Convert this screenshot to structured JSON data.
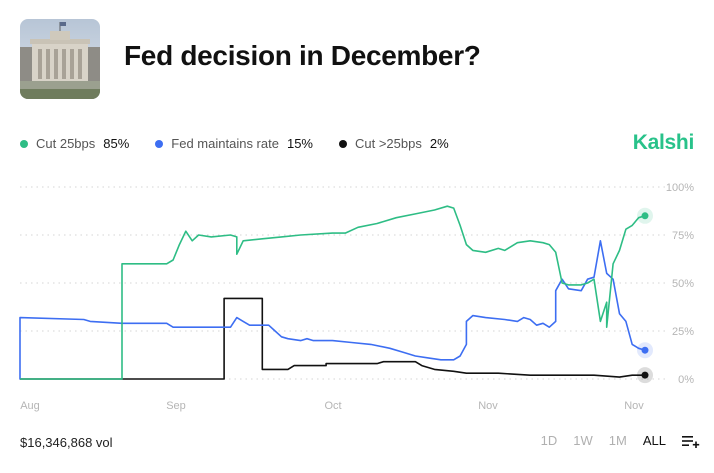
{
  "market": {
    "title": "Fed decision in December?",
    "thumbnail_icon": "federal-reserve-building-photo"
  },
  "brand": {
    "name": "Kalshi",
    "color": "#28c28a"
  },
  "legend": [
    {
      "name": "Cut 25bps",
      "value": "85%",
      "color": "#2ebd85"
    },
    {
      "name": "Fed maintains rate",
      "value": "15%",
      "color": "#3d6ef2"
    },
    {
      "name": "Cut >25bps",
      "value": "2%",
      "color": "#111111"
    }
  ],
  "footer": {
    "volume": "$16,346,868 vol",
    "ranges": [
      "1D",
      "1W",
      "1M",
      "ALL"
    ],
    "active_range": "ALL",
    "menu_icon": "playlist-add-icon"
  },
  "chart_data": {
    "type": "line",
    "x_type": "date",
    "x_ticks": [
      "Aug",
      "Sep",
      "Oct",
      "Nov",
      "Nov"
    ],
    "y_ticks": [
      "0%",
      "25%",
      "50%",
      "75%",
      "100%"
    ],
    "ylim": [
      0,
      100
    ],
    "y_axis_side": "right",
    "grid": "dotted-horizontal",
    "series": [
      {
        "name": "Cut 25bps",
        "color": "#2ebd85",
        "end_label": "85%",
        "points": [
          [
            0,
            0
          ],
          [
            16,
            0
          ],
          [
            16,
            60
          ],
          [
            23,
            60
          ],
          [
            24,
            62
          ],
          [
            25,
            70
          ],
          [
            26,
            77
          ],
          [
            27,
            72
          ],
          [
            28,
            75
          ],
          [
            30,
            74
          ],
          [
            33,
            75
          ],
          [
            34,
            74
          ],
          [
            34,
            65
          ],
          [
            35,
            72
          ],
          [
            38,
            73
          ],
          [
            41,
            74
          ],
          [
            44,
            75
          ],
          [
            49,
            76
          ],
          [
            51,
            76
          ],
          [
            53,
            79
          ],
          [
            56,
            81
          ],
          [
            59,
            84
          ],
          [
            62,
            86
          ],
          [
            65,
            88
          ],
          [
            67,
            90
          ],
          [
            68,
            89
          ],
          [
            69,
            80
          ],
          [
            70,
            70
          ],
          [
            71,
            67
          ],
          [
            73,
            66
          ],
          [
            75,
            68
          ],
          [
            76,
            67
          ],
          [
            78,
            71
          ],
          [
            80,
            72
          ],
          [
            82,
            71
          ],
          [
            83,
            70
          ],
          [
            84,
            66
          ],
          [
            85,
            50
          ],
          [
            86,
            49
          ],
          [
            88,
            49
          ],
          [
            89,
            50
          ],
          [
            90,
            52
          ],
          [
            91,
            30
          ],
          [
            92,
            40
          ],
          [
            92,
            27
          ],
          [
            93,
            60
          ],
          [
            94,
            67
          ],
          [
            95,
            78
          ],
          [
            96,
            80
          ],
          [
            97,
            84
          ],
          [
            98,
            85
          ]
        ]
      },
      {
        "name": "Fed maintains rate",
        "color": "#3d6ef2",
        "end_label": "15%",
        "points": [
          [
            0,
            32
          ],
          [
            0,
            0
          ],
          [
            0,
            32
          ],
          [
            10,
            31
          ],
          [
            11,
            30
          ],
          [
            16,
            29
          ],
          [
            23,
            29
          ],
          [
            24,
            27
          ],
          [
            33,
            27
          ],
          [
            34,
            32
          ],
          [
            35,
            30
          ],
          [
            36,
            28
          ],
          [
            39,
            28
          ],
          [
            40,
            25
          ],
          [
            41,
            22
          ],
          [
            42,
            21
          ],
          [
            44,
            20
          ],
          [
            45,
            21
          ],
          [
            46,
            20
          ],
          [
            49,
            20
          ],
          [
            52,
            19
          ],
          [
            55,
            18
          ],
          [
            58,
            16
          ],
          [
            60,
            14
          ],
          [
            62,
            12
          ],
          [
            64,
            11
          ],
          [
            66,
            10
          ],
          [
            68,
            10
          ],
          [
            69,
            12
          ],
          [
            70,
            18
          ],
          [
            70,
            30
          ],
          [
            71,
            33
          ],
          [
            73,
            32
          ],
          [
            76,
            31
          ],
          [
            78,
            30
          ],
          [
            79,
            32
          ],
          [
            80,
            31
          ],
          [
            81,
            28
          ],
          [
            82,
            29
          ],
          [
            83,
            27
          ],
          [
            84,
            30
          ],
          [
            84,
            46
          ],
          [
            85,
            52
          ],
          [
            86,
            47
          ],
          [
            88,
            46
          ],
          [
            89,
            52
          ],
          [
            90,
            53
          ],
          [
            91,
            72
          ],
          [
            92,
            55
          ],
          [
            93,
            52
          ],
          [
            94,
            34
          ],
          [
            95,
            30
          ],
          [
            96,
            18
          ],
          [
            97,
            16
          ],
          [
            98,
            15
          ]
        ]
      },
      {
        "name": "Cut >25bps",
        "color": "#111111",
        "end_label": "2%",
        "points": [
          [
            0,
            0
          ],
          [
            32,
            0
          ],
          [
            32,
            42
          ],
          [
            38,
            42
          ],
          [
            38,
            5
          ],
          [
            42,
            5
          ],
          [
            43,
            7
          ],
          [
            48,
            7
          ],
          [
            48,
            8
          ],
          [
            56,
            8
          ],
          [
            57,
            9
          ],
          [
            62,
            9
          ],
          [
            63,
            7
          ],
          [
            65,
            5
          ],
          [
            68,
            4
          ],
          [
            70,
            3
          ],
          [
            75,
            3
          ],
          [
            80,
            2
          ],
          [
            85,
            2
          ],
          [
            90,
            2
          ],
          [
            94,
            1
          ],
          [
            96,
            2
          ],
          [
            98,
            2
          ]
        ]
      }
    ]
  }
}
